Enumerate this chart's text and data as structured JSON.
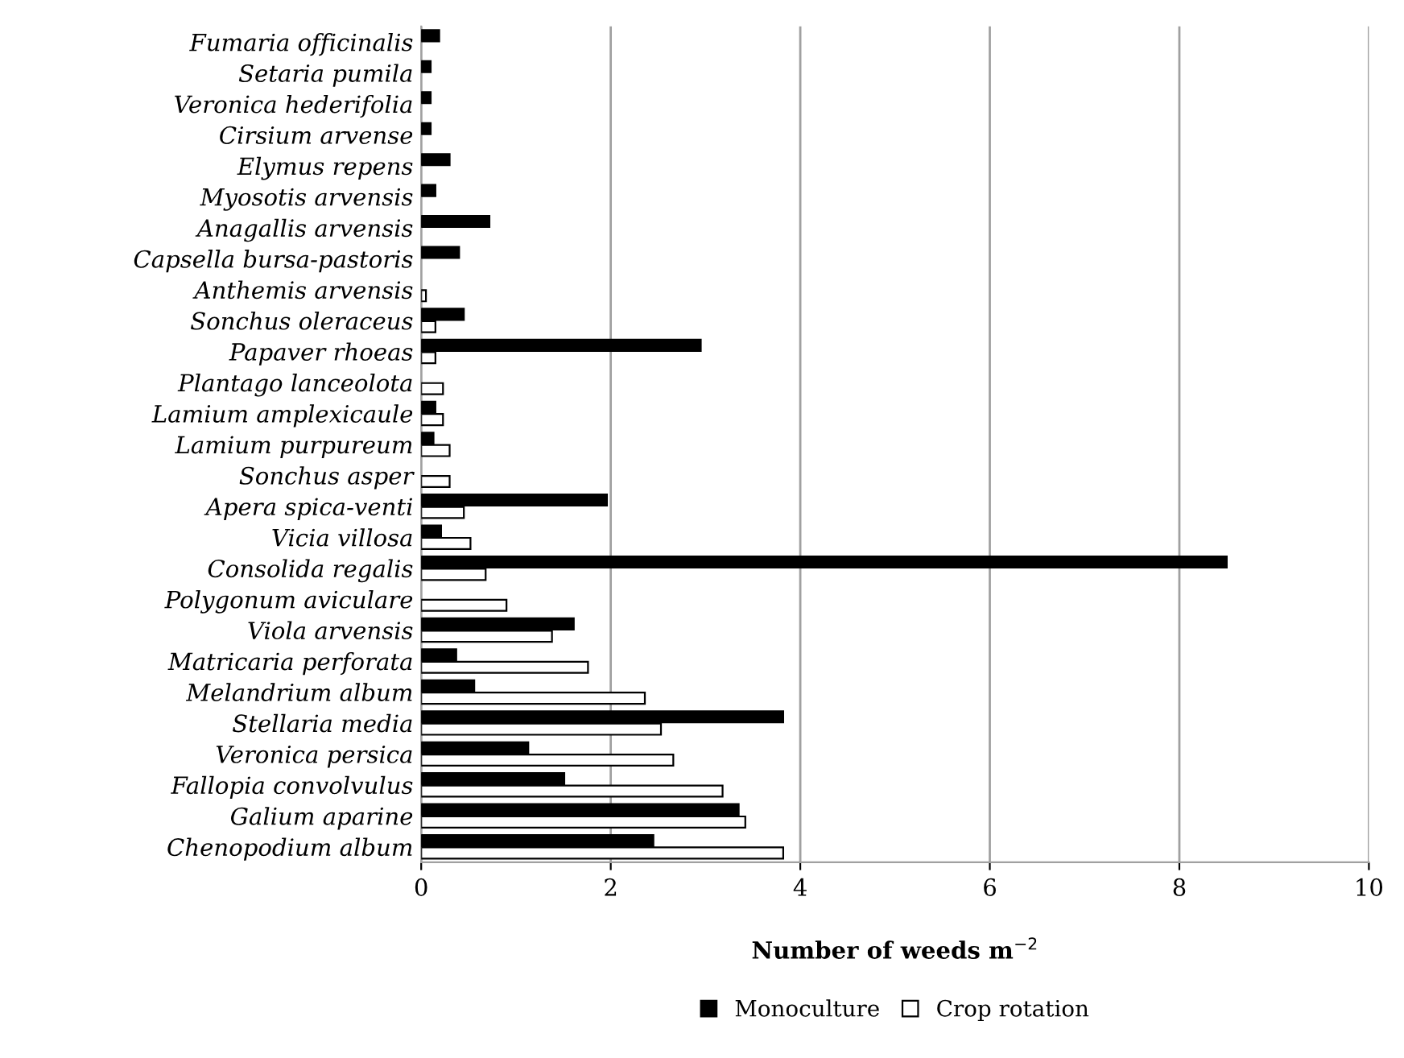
{
  "chart_data": {
    "type": "bar",
    "orientation": "horizontal",
    "xlabel": "Number of weeds m$^{−2}$",
    "categories": [
      "Fumaria officinalis",
      "Setaria pumila",
      "Veronica hederifolia",
      "Cirsium arvense",
      "Elymus repens",
      "Myosotis arvensis",
      "Anagallis arvensis",
      "Capsella bursa-pastoris",
      "Anthemis arvensis",
      "Sonchus oleraceus",
      "Papaver rhoeas",
      "Plantago lanceolota",
      "Lamium amplexicaule",
      "Lamium purpureum",
      "Sonchus asper",
      "Apera spica-venti",
      "Vicia villosa",
      "Consolida regalis",
      "Polygonum aviculare",
      "Viola arvensis",
      "Matricaria perforata",
      "Melandrium album",
      "Stellaria media",
      "Veronica persica",
      "Fallopia convolvulus",
      "Galium aparine",
      "Chenopodium album"
    ],
    "series": [
      {
        "name": "Monoculture",
        "color": "#000000",
        "values": [
          0.19,
          0.1,
          0.1,
          0.1,
          0.3,
          0.15,
          0.72,
          0.4,
          null,
          0.45,
          2.95,
          null,
          0.15,
          0.13,
          null,
          1.96,
          0.21,
          8.5,
          null,
          1.61,
          0.37,
          0.56,
          3.82,
          1.13,
          1.51,
          3.35,
          2.45
        ]
      },
      {
        "name": "Crop rotation",
        "color": "#ffffff",
        "values": [
          null,
          null,
          null,
          null,
          null,
          null,
          null,
          null,
          0.05,
          0.15,
          0.15,
          0.23,
          0.23,
          0.3,
          0.3,
          0.45,
          0.52,
          0.68,
          0.9,
          1.38,
          1.76,
          2.36,
          2.53,
          2.66,
          3.18,
          3.42,
          3.82
        ]
      }
    ],
    "xlim": [
      0,
      10
    ],
    "xticks": [
      0,
      2,
      4,
      6,
      8,
      10
    ],
    "grid": "x",
    "legend": "bottom"
  }
}
